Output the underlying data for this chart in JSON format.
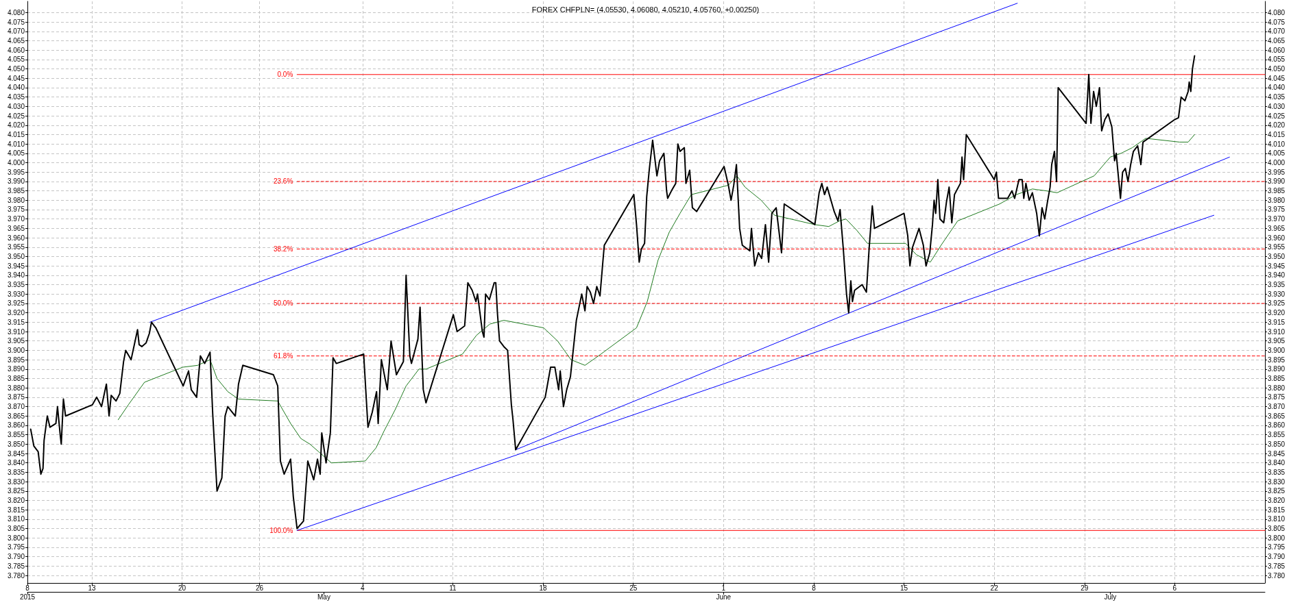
{
  "chart_data": {
    "type": "line",
    "title": "FOREX CHFPLN= (4.05530, 4.06080, 4.05210, 4.05760, +0.00250)",
    "grid": true,
    "marker": "none",
    "line_style": "solid",
    "xlim": [
      "2015-04-08",
      "2015-07-13"
    ],
    "xticks": [
      {
        "value": "2015-04-08",
        "label": "8"
      },
      {
        "value": "2015-04-13",
        "label": "13"
      },
      {
        "value": "2015-04-20",
        "label": "20"
      },
      {
        "value": "2015-04-26",
        "label": "26"
      },
      {
        "value": "2015-05-04",
        "label": "4"
      },
      {
        "value": "2015-05-11",
        "label": "11"
      },
      {
        "value": "2015-05-18",
        "label": "18"
      },
      {
        "value": "2015-05-25",
        "label": "25"
      },
      {
        "value": "2015-06-01",
        "label": "1"
      },
      {
        "value": "2015-06-08",
        "label": "8"
      },
      {
        "value": "2015-06-15",
        "label": "15"
      },
      {
        "value": "2015-06-22",
        "label": "22"
      },
      {
        "value": "2015-06-29",
        "label": "29"
      },
      {
        "value": "2015-07-06",
        "label": "6"
      }
    ],
    "x2lim": [
      "2015-04-08",
      "2015-07-13"
    ],
    "x2ticks": [
      {
        "value": "2015-04-08",
        "label": "2015"
      },
      {
        "value": "2015-05-01",
        "label": "May"
      },
      {
        "value": "2015-06-01",
        "label": "June"
      },
      {
        "value": "2015-07-01",
        "label": "July"
      }
    ],
    "ylim": [
      3.776,
      4.086
    ],
    "yticks": [
      {
        "value": 3.78,
        "label": "3.780"
      },
      {
        "value": 3.785,
        "label": "3.785"
      },
      {
        "value": 3.79,
        "label": "3.790"
      },
      {
        "value": 3.795,
        "label": "3.795"
      },
      {
        "value": 3.8,
        "label": "3.800"
      },
      {
        "value": 3.805,
        "label": "3.805"
      },
      {
        "value": 3.81,
        "label": "3.810"
      },
      {
        "value": 3.815,
        "label": "3.815"
      },
      {
        "value": 3.82,
        "label": "3.820"
      },
      {
        "value": 3.825,
        "label": "3.825"
      },
      {
        "value": 3.83,
        "label": "3.830"
      },
      {
        "value": 3.835,
        "label": "3.835"
      },
      {
        "value": 3.84,
        "label": "3.840"
      },
      {
        "value": 3.845,
        "label": "3.845"
      },
      {
        "value": 3.85,
        "label": "3.850"
      },
      {
        "value": 3.855,
        "label": "3.855"
      },
      {
        "value": 3.86,
        "label": "3.860"
      },
      {
        "value": 3.865,
        "label": "3.865"
      },
      {
        "value": 3.87,
        "label": "3.870"
      },
      {
        "value": 3.875,
        "label": "3.875"
      },
      {
        "value": 3.88,
        "label": "3.880"
      },
      {
        "value": 3.885,
        "label": "3.885"
      },
      {
        "value": 3.89,
        "label": "3.890"
      },
      {
        "value": 3.895,
        "label": "3.895"
      },
      {
        "value": 3.9,
        "label": "3.900"
      },
      {
        "value": 3.905,
        "label": "3.905"
      },
      {
        "value": 3.91,
        "label": "3.910"
      },
      {
        "value": 3.915,
        "label": "3.915"
      },
      {
        "value": 3.92,
        "label": "3.920"
      },
      {
        "value": 3.925,
        "label": "3.925"
      },
      {
        "value": 3.93,
        "label": "3.930"
      },
      {
        "value": 3.935,
        "label": "3.935"
      },
      {
        "value": 3.94,
        "label": "3.940"
      },
      {
        "value": 3.945,
        "label": "3.945"
      },
      {
        "value": 3.95,
        "label": "3.950"
      },
      {
        "value": 3.955,
        "label": "3.955"
      },
      {
        "value": 3.96,
        "label": "3.960"
      },
      {
        "value": 3.965,
        "label": "3.965"
      },
      {
        "value": 3.97,
        "label": "3.970"
      },
      {
        "value": 3.975,
        "label": "3.975"
      },
      {
        "value": 3.98,
        "label": "3.980"
      },
      {
        "value": 3.985,
        "label": "3.985"
      },
      {
        "value": 3.99,
        "label": "3.990"
      },
      {
        "value": 3.995,
        "label": "3.995"
      },
      {
        "value": 4,
        "label": "4.000"
      },
      {
        "value": 4.005,
        "label": "4.005"
      },
      {
        "value": 4.01,
        "label": "4.010"
      },
      {
        "value": 4.015,
        "label": "4.015"
      },
      {
        "value": 4.02,
        "label": "4.020"
      },
      {
        "value": 4.025,
        "label": "4.025"
      },
      {
        "value": 4.03,
        "label": "4.030"
      },
      {
        "value": 4.035,
        "label": "4.035"
      },
      {
        "value": 4.04,
        "label": "4.040"
      },
      {
        "value": 4.045,
        "label": "4.045"
      },
      {
        "value": 4.05,
        "label": "4.050"
      },
      {
        "value": 4.055,
        "label": "4.055"
      },
      {
        "value": 4.06,
        "label": "4.060"
      },
      {
        "value": 4.065,
        "label": "4.065"
      },
      {
        "value": 4.07,
        "label": "4.070"
      },
      {
        "value": 4.075,
        "label": "4.075"
      },
      {
        "value": 4.08,
        "label": "4.080"
      }
    ],
    "y2lim": [
      3.776,
      4.086
    ],
    "y2ticks": [
      {
        "value": 3.78,
        "label": "3.780"
      },
      {
        "value": 3.785,
        "label": "3.785"
      },
      {
        "value": 3.79,
        "label": "3.790"
      },
      {
        "value": 3.795,
        "label": "3.795"
      },
      {
        "value": 3.8,
        "label": "3.800"
      },
      {
        "value": 3.805,
        "label": "3.805"
      },
      {
        "value": 3.81,
        "label": "3.810"
      },
      {
        "value": 3.815,
        "label": "3.815"
      },
      {
        "value": 3.82,
        "label": "3.820"
      },
      {
        "value": 3.825,
        "label": "3.825"
      },
      {
        "value": 3.83,
        "label": "3.830"
      },
      {
        "value": 3.835,
        "label": "3.835"
      },
      {
        "value": 3.84,
        "label": "3.840"
      },
      {
        "value": 3.845,
        "label": "3.845"
      },
      {
        "value": 3.85,
        "label": "3.850"
      },
      {
        "value": 3.855,
        "label": "3.855"
      },
      {
        "value": 3.86,
        "label": "3.860"
      },
      {
        "value": 3.865,
        "label": "3.865"
      },
      {
        "value": 3.87,
        "label": "3.870"
      },
      {
        "value": 3.875,
        "label": "3.875"
      },
      {
        "value": 3.88,
        "label": "3.880"
      },
      {
        "value": 3.885,
        "label": "3.885"
      },
      {
        "value": 3.89,
        "label": "3.890"
      },
      {
        "value": 3.895,
        "label": "3.895"
      },
      {
        "value": 3.9,
        "label": "3.900"
      },
      {
        "value": 3.905,
        "label": "3.905"
      },
      {
        "value": 3.91,
        "label": "3.910"
      },
      {
        "value": 3.915,
        "label": "3.915"
      },
      {
        "value": 3.92,
        "label": "3.920"
      },
      {
        "value": 3.925,
        "label": "3.925"
      },
      {
        "value": 3.93,
        "label": "3.930"
      },
      {
        "value": 3.935,
        "label": "3.935"
      },
      {
        "value": 3.94,
        "label": "3.940"
      },
      {
        "value": 3.945,
        "label": "3.945"
      },
      {
        "value": 3.95,
        "label": "3.950"
      },
      {
        "value": 3.955,
        "label": "3.955"
      },
      {
        "value": 3.96,
        "label": "3.960"
      },
      {
        "value": 3.965,
        "label": "3.965"
      },
      {
        "value": 3.97,
        "label": "3.970"
      },
      {
        "value": 3.975,
        "label": "3.975"
      },
      {
        "value": 3.98,
        "label": "3.980"
      },
      {
        "value": 3.985,
        "label": "3.985"
      },
      {
        "value": 3.99,
        "label": "3.990"
      },
      {
        "value": 3.995,
        "label": "3.995"
      },
      {
        "value": 4,
        "label": "4.000"
      },
      {
        "value": 4.005,
        "label": "4.005"
      },
      {
        "value": 4.01,
        "label": "4.010"
      },
      {
        "value": 4.015,
        "label": "4.015"
      },
      {
        "value": 4.02,
        "label": "4.020"
      },
      {
        "value": 4.025,
        "label": "4.025"
      },
      {
        "value": 4.03,
        "label": "4.030"
      },
      {
        "value": 4.035,
        "label": "4.035"
      },
      {
        "value": 4.04,
        "label": "4.040"
      },
      {
        "value": 4.045,
        "label": "4.045"
      },
      {
        "value": 4.05,
        "label": "4.050"
      },
      {
        "value": 4.055,
        "label": "4.055"
      },
      {
        "value": 4.06,
        "label": "4.060"
      },
      {
        "value": 4.065,
        "label": "4.065"
      },
      {
        "value": 4.07,
        "label": "4.070"
      },
      {
        "value": 4.075,
        "label": "4.075"
      },
      {
        "value": 4.08,
        "label": "4.080"
      }
    ],
    "series": [
      {
        "color": "#000000",
        "x": [
          "2015-04-08T06:00",
          "2015-04-08T12:00",
          "2015-04-08T20:00",
          "2015-04-09T01:00",
          "2015-04-09T05:00",
          "2015-04-09T07:00",
          "2015-04-09T13:00",
          "2015-04-09T18:00",
          "2015-04-10T05:00",
          "2015-04-10T08:00",
          "2015-04-10T13:00",
          "2015-04-10T15:00",
          "2015-04-10T19:00",
          "2015-04-10T23:00",
          "2015-04-13T01:00",
          "2015-04-13T09:00",
          "2015-04-13T18:00",
          "2015-04-14T03:00",
          "2015-04-14T08:00",
          "2015-04-14T12:00",
          "2015-04-14T21:00",
          "2015-04-15T04:00",
          "2015-04-15T11:00",
          "2015-04-15T15:00",
          "2015-04-16T01:00",
          "2015-04-16T07:00",
          "2015-04-16T13:00",
          "2015-04-16T16:00",
          "2015-04-16T21:00",
          "2015-04-17T05:00",
          "2015-04-17T11:00",
          "2015-04-17T15:00",
          "2015-04-17T23:00",
          "2015-04-20T02:00",
          "2015-04-20T12:00",
          "2015-04-20T17:00",
          "2015-04-21T03:00",
          "2015-04-21T10:00",
          "2015-04-21T18:00",
          "2015-04-22T04:00",
          "2015-04-22T09:00",
          "2015-04-22T17:00",
          "2015-04-23T02:00",
          "2015-04-23T08:00",
          "2015-04-23T13:00",
          "2015-04-24T03:00",
          "2015-04-24T09:00",
          "2015-04-24T17:00",
          "2015-04-27T02:00",
          "2015-04-27T10:00",
          "2015-04-27T15:00",
          "2015-04-27T22:00",
          "2015-04-28T10:00",
          "2015-04-28T15:00",
          "2015-04-28T22:00",
          "2015-04-29T10:00",
          "2015-04-29T18:00",
          "2015-04-30T05:00",
          "2015-04-30T12:00",
          "2015-04-30T17:00",
          "2015-04-30T20:00",
          "2015-05-01T04:00",
          "2015-05-01T12:00",
          "2015-05-01T17:00",
          "2015-05-01T23:00",
          "2015-05-04T02:00",
          "2015-05-04T10:00",
          "2015-05-04T18:00",
          "2015-05-05T02:00",
          "2015-05-05T05:00",
          "2015-05-05T11:00",
          "2015-05-05T22:00",
          "2015-05-06T05:00",
          "2015-05-06T15:00",
          "2015-05-07T04:00",
          "2015-05-07T09:00",
          "2015-05-07T16:00",
          "2015-05-07T19:00",
          "2015-05-08T07:00",
          "2015-05-08T11:00",
          "2015-05-08T17:00",
          "2015-05-08T22:00",
          "2015-05-11T01:00",
          "2015-05-11T08:00",
          "2015-05-11T22:00",
          "2015-05-12T02:00",
          "2015-05-12T04:00",
          "2015-05-12T12:00",
          "2015-05-12T19:00",
          "2015-05-12T22:00",
          "2015-05-13T07:00",
          "2015-05-13T10:00",
          "2015-05-13T13:00",
          "2015-05-13T20:00",
          "2015-05-14T05:00",
          "2015-05-14T08:00",
          "2015-05-14T11:00",
          "2015-05-14T15:00",
          "2015-05-14T23:00",
          "2015-05-15T06:00",
          "2015-05-15T13:00",
          "2015-05-15T16:00",
          "2015-05-15T21:00",
          "2015-05-18T04:00",
          "2015-05-18T09:00",
          "2015-05-18T14:00",
          "2015-05-18T22:00",
          "2015-05-19T05:00",
          "2015-05-19T08:00",
          "2015-05-19T14:00",
          "2015-05-19T20:00",
          "2015-05-20T03:00",
          "2015-05-20T14:00",
          "2015-05-21T00:00",
          "2015-05-21T06:00",
          "2015-05-21T10:00",
          "2015-05-21T16:00",
          "2015-05-21T22:00",
          "2015-05-22T04:00",
          "2015-05-22T10:00",
          "2015-05-22T15:00",
          "2015-05-22T18:00",
          "2015-05-25T01:00",
          "2015-05-25T06:00",
          "2015-05-25T11:00",
          "2015-05-25T15:00",
          "2015-05-25T21:00",
          "2015-05-26T01:00",
          "2015-05-26T06:00",
          "2015-05-26T12:00",
          "2015-05-26T20:00",
          "2015-05-27T01:00",
          "2015-05-27T09:00",
          "2015-05-27T14:00",
          "2015-05-27T16:00",
          "2015-05-27T23:00",
          "2015-05-28T07:00",
          "2015-05-28T11:00",
          "2015-05-28T15:00",
          "2015-05-28T23:00",
          "2015-05-29T02:00",
          "2015-05-29T09:00",
          "2015-05-29T14:00",
          "2015-05-29T22:00",
          "2015-06-01T01:00",
          "2015-06-01T09:00",
          "2015-06-01T14:00",
          "2015-06-01T19:00",
          "2015-06-02T00:00",
          "2015-06-02T06:00",
          "2015-06-02T11:00",
          "2015-06-03T01:00",
          "2015-06-03T04:00",
          "2015-06-03T10:00",
          "2015-06-03T17:00",
          "2015-06-03T23:00",
          "2015-06-04T06:00",
          "2015-06-04T12:00",
          "2015-06-04T18:00",
          "2015-06-05T02:00",
          "2015-06-05T07:00",
          "2015-06-05T12:00",
          "2015-06-05T17:00",
          "2015-06-08T02:00",
          "2015-06-08T10:00",
          "2015-06-08T15:00",
          "2015-06-08T20:00",
          "2015-06-09T01:00",
          "2015-06-09T14:00",
          "2015-06-09T21:00",
          "2015-06-10T01:00",
          "2015-06-10T07:00",
          "2015-06-10T13:00",
          "2015-06-10T17:00",
          "2015-06-10T21:00",
          "2015-06-11T00:00",
          "2015-06-11T04:00",
          "2015-06-11T18:00",
          "2015-06-12T02:00",
          "2015-06-12T07:00",
          "2015-06-12T13:00",
          "2015-06-12T17:00",
          "2015-06-15T00:00",
          "2015-06-15T07:00",
          "2015-06-15T11:00",
          "2015-06-15T16:00",
          "2015-06-16T04:00",
          "2015-06-16T12:00",
          "2015-06-16T17:00",
          "2015-06-17T00:00",
          "2015-06-17T05:00",
          "2015-06-17T08:00",
          "2015-06-17T11:00",
          "2015-06-17T15:00",
          "2015-06-17T19:00",
          "2015-06-18T02:00",
          "2015-06-18T07:00",
          "2015-06-18T12:00",
          "2015-06-18T17:00",
          "2015-06-18T22:00",
          "2015-06-19T09:00",
          "2015-06-19T12:00",
          "2015-06-19T15:00",
          "2015-06-19T20:00",
          "2015-06-22T00:00",
          "2015-06-22T04:00",
          "2015-06-22T08:00",
          "2015-06-23T01:00",
          "2015-06-23T09:00",
          "2015-06-23T14:00",
          "2015-06-23T22:00",
          "2015-06-24T04:00",
          "2015-06-24T07:00",
          "2015-06-24T11:00",
          "2015-06-24T17:00",
          "2015-06-24T23:00",
          "2015-06-25T07:00",
          "2015-06-25T12:00",
          "2015-06-25T17:00",
          "2015-06-25T22:00",
          "2015-06-26T03:00",
          "2015-06-26T08:00",
          "2015-06-26T11:00",
          "2015-06-26T16:00",
          "2015-06-26T20:00",
          "2015-06-26T23:00",
          "2015-06-29T03:00",
          "2015-06-29T08:00",
          "2015-06-29T12:00",
          "2015-06-29T17:00",
          "2015-06-29T22:00",
          "2015-06-30T04:00",
          "2015-06-30T08:00",
          "2015-06-30T14:00",
          "2015-06-30T20:00",
          "2015-07-01T03:00",
          "2015-07-01T08:00",
          "2015-07-01T11:00",
          "2015-07-01T19:00",
          "2015-07-01T23:00",
          "2015-07-02T04:00",
          "2015-07-02T09:00",
          "2015-07-02T14:00",
          "2015-07-02T19:00",
          "2015-07-03T03:00",
          "2015-07-03T09:00",
          "2015-07-03T13:00",
          "2015-07-03T18:00",
          "2015-07-06T00:00",
          "2015-07-06T07:00",
          "2015-07-06T12:00",
          "2015-07-06T19:00",
          "2015-07-07T01:00",
          "2015-07-07T03:00",
          "2015-07-07T06:00",
          "2015-07-07T09:00",
          "2015-07-07T13:00"
        ],
        "values": [
          3.858,
          3.849,
          3.846,
          3.834,
          3.837,
          3.852,
          3.865,
          3.859,
          3.861,
          3.87,
          3.855,
          3.85,
          3.874,
          3.865,
          3.871,
          3.875,
          3.87,
          3.882,
          3.865,
          3.876,
          3.873,
          3.877,
          3.894,
          3.9,
          3.895,
          3.903,
          3.911,
          3.903,
          3.902,
          3.904,
          3.909,
          3.915,
          3.912,
          3.881,
          3.889,
          3.879,
          3.875,
          3.897,
          3.893,
          3.899,
          3.866,
          3.825,
          3.832,
          3.865,
          3.87,
          3.865,
          3.882,
          3.892,
          3.887,
          3.881,
          3.841,
          3.834,
          3.842,
          3.822,
          3.805,
          3.809,
          3.841,
          3.831,
          3.842,
          3.834,
          3.856,
          3.84,
          3.856,
          3.896,
          3.893,
          3.898,
          3.859,
          3.867,
          3.878,
          3.861,
          3.895,
          3.879,
          3.905,
          3.887,
          3.894,
          3.94,
          3.897,
          3.893,
          3.906,
          3.923,
          3.879,
          3.872,
          3.919,
          3.91,
          3.913,
          3.928,
          3.936,
          3.932,
          3.926,
          3.93,
          3.91,
          3.907,
          3.93,
          3.927,
          3.936,
          3.936,
          3.92,
          3.905,
          3.902,
          3.9,
          3.871,
          3.863,
          3.847,
          3.875,
          3.883,
          3.891,
          3.891,
          3.879,
          3.889,
          3.87,
          3.879,
          3.886,
          3.916,
          3.93,
          3.921,
          3.934,
          3.931,
          3.925,
          3.934,
          3.929,
          3.946,
          3.956,
          3.983,
          3.967,
          3.947,
          3.954,
          3.957,
          3.982,
          3.997,
          4.012,
          3.993,
          4.001,
          4.005,
          3.985,
          3.981,
          3.985,
          3.989,
          4.01,
          4.006,
          4.008,
          3.989,
          3.996,
          3.976,
          3.974,
          3.998,
          3.988,
          3.98,
          3.988,
          3.999,
          3.965,
          3.956,
          3.953,
          3.965,
          3.945,
          3.952,
          3.949,
          3.967,
          3.947,
          3.973,
          3.976,
          3.964,
          3.952,
          3.978,
          3.967,
          3.984,
          3.989,
          3.983,
          3.987,
          3.974,
          3.969,
          3.975,
          3.954,
          3.93,
          3.92,
          3.937,
          3.926,
          3.932,
          3.935,
          3.931,
          3.954,
          3.977,
          3.965,
          3.973,
          3.961,
          3.945,
          3.955,
          3.965,
          3.956,
          3.945,
          3.952,
          3.967,
          3.98,
          3.973,
          3.991,
          3.97,
          3.968,
          3.979,
          3.987,
          3.968,
          3.983,
          3.989,
          4.003,
          3.991,
          4.015,
          3.991,
          3.995,
          3.981,
          3.981,
          3.985,
          3.981,
          3.991,
          3.991,
          3.981,
          3.989,
          3.98,
          3.984,
          3.973,
          3.961,
          3.976,
          3.97,
          3.979,
          3.987,
          3.999,
          4.006,
          3.99,
          4.04,
          4.021,
          4.047,
          4.021,
          4.038,
          4.03,
          4.04,
          4.017,
          4.023,
          4.026,
          4.019,
          4.001,
          4.005,
          3.981,
          3.995,
          3.997,
          3.99,
          3.999,
          4.006,
          4.009,
          3.999,
          4.011,
          4.012,
          4.023,
          4.024,
          4.035,
          4.033,
          4.038,
          4.043,
          4.038,
          4.05,
          4.057
        ]
      },
      {
        "color": "#1e7a1e",
        "x": [
          "2015-04-15T01:00",
          "2015-04-15T20:00",
          "2015-04-17T02:00",
          "2015-04-20T01:00",
          "2015-04-21T05:00",
          "2015-04-22T04:00",
          "2015-04-22T17:00",
          "2015-04-23T13:00",
          "2015-04-24T09:00",
          "2015-04-27T10:00",
          "2015-04-28T10:00",
          "2015-04-29T05:00",
          "2015-04-29T22:00",
          "2015-04-30T14:00",
          "2015-05-01T14:00",
          "2015-05-04T05:00",
          "2015-05-05T01:00",
          "2015-05-05T16:00",
          "2015-05-06T12:00",
          "2015-05-07T09:00",
          "2015-05-08T09:00",
          "2015-05-08T22:00",
          "2015-05-11T18:00",
          "2015-05-12T20:00",
          "2015-05-13T21:00",
          "2015-05-14T23:00",
          "2015-05-18T01:00",
          "2015-05-19T03:00",
          "2015-05-20T04:00",
          "2015-05-21T06:00",
          "2015-05-22T07:00",
          "2015-05-25T06:00",
          "2015-05-26T02:00",
          "2015-05-26T22:00",
          "2015-05-27T19:00",
          "2015-05-28T15:00",
          "2015-05-29T12:00",
          "2015-06-01T09:00",
          "2015-06-02T01:00",
          "2015-06-02T16:00",
          "2015-06-03T22:00",
          "2015-06-04T23:00",
          "2015-06-08T02:00",
          "2015-06-09T04:00",
          "2015-06-10T00:00",
          "2015-06-10T12:00",
          "2015-06-11T08:00",
          "2015-06-12T04:00",
          "2015-06-15T03:00",
          "2015-06-15T23:00",
          "2015-06-17T01:00",
          "2015-06-17T21:00",
          "2015-06-19T04:00",
          "2015-06-22T10:00",
          "2015-06-23T17:00",
          "2015-06-24T23:00",
          "2015-06-26T01:00",
          "2015-06-26T21:00",
          "2015-06-29T18:00",
          "2015-07-01T00:00",
          "2015-07-01T20:00",
          "2015-07-02T17:00",
          "2015-07-03T18:00",
          "2015-07-06T09:00",
          "2015-07-07T01:00",
          "2015-07-07T13:00"
        ],
        "values": [
          3.863,
          3.871,
          3.883,
          3.891,
          3.892,
          3.895,
          3.885,
          3.878,
          3.874,
          3.873,
          3.861,
          3.853,
          3.85,
          3.846,
          3.84,
          3.841,
          3.848,
          3.857,
          3.868,
          3.881,
          3.89,
          3.89,
          3.898,
          3.908,
          3.914,
          3.916,
          3.912,
          3.905,
          3.895,
          3.892,
          3.897,
          3.912,
          3.926,
          3.948,
          3.963,
          3.973,
          3.983,
          3.988,
          3.993,
          3.987,
          3.98,
          3.972,
          3.967,
          3.966,
          3.969,
          3.97,
          3.964,
          3.957,
          3.957,
          3.951,
          3.947,
          3.956,
          3.969,
          3.978,
          3.983,
          3.986,
          3.985,
          3.984,
          3.993,
          4.003,
          4.005,
          4.008,
          4.013,
          4.011,
          4.011,
          4.015
        ]
      },
      {
        "color": "#0000ff",
        "x": [
          "2015-04-17T12:00",
          "2015-06-23T19:00"
        ],
        "values": [
          3.915,
          4.085
        ]
      },
      {
        "color": "#0000ff",
        "x": [
          "2015-04-28T22:00",
          "2015-07-09T01:00"
        ],
        "values": [
          3.804,
          3.972
        ]
      },
      {
        "color": "#0000ff",
        "x": [
          "2015-05-15T21:00",
          "2015-07-10T06:00"
        ],
        "values": [
          3.847,
          4.003
        ]
      },
      {
        "color": "#ff0000",
        "x": [
          "2015-04-28T22:00",
          "2015-07-13"
        ],
        "values": [
          4.047,
          4.047
        ]
      },
      {
        "color": "#ff0000",
        "line_style": "dashed",
        "x": [
          "2015-04-28T22:00",
          "2015-07-13"
        ],
        "values": [
          3.99,
          3.99
        ]
      },
      {
        "color": "#ff0000",
        "line_style": "dashed",
        "x": [
          "2015-04-28T22:00",
          "2015-07-13"
        ],
        "values": [
          3.954,
          3.954
        ]
      },
      {
        "color": "#ff0000",
        "line_style": "dashed",
        "x": [
          "2015-04-28T22:00",
          "2015-07-13"
        ],
        "values": [
          3.925,
          3.925
        ]
      },
      {
        "color": "#ff0000",
        "line_style": "dashed",
        "x": [
          "2015-04-28T22:00",
          "2015-07-13"
        ],
        "values": [
          3.897,
          3.897
        ]
      },
      {
        "color": "#ff0000",
        "x": [
          "2015-04-28T22:00",
          "2015-07-13"
        ],
        "values": [
          3.804,
          3.804
        ]
      }
    ],
    "annotations": [
      {
        "text": "0.0%",
        "x": "2015-04-28T22:00",
        "y": 4.047
      },
      {
        "text": "23.6%",
        "x": "2015-04-28T22:00",
        "y": 3.99
      },
      {
        "text": "38.2%",
        "x": "2015-04-28T22:00",
        "y": 3.954
      },
      {
        "text": "50.0%",
        "x": "2015-04-28T22:00",
        "y": 3.925
      },
      {
        "text": "61.8%",
        "x": "2015-04-28T22:00",
        "y": 3.897
      },
      {
        "text": "100.0%",
        "x": "2015-04-28T22:00",
        "y": 3.804
      }
    ]
  }
}
